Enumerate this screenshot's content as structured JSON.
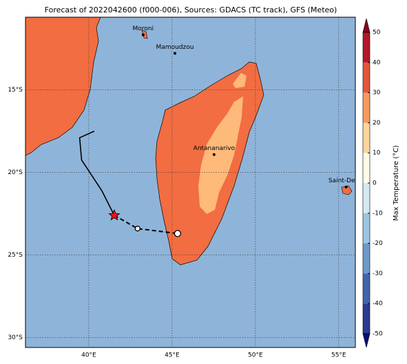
{
  "chart_data": {
    "type": "map",
    "title": "Forecast of 2022042600 (f000-006), Sources: GDACS (TC track), GFS (Meteo)",
    "xlim": [
      36.2,
      56.0
    ],
    "ylim": [
      -30.6,
      -10.6
    ],
    "xticks": [
      {
        "value": 40,
        "label": "40°E"
      },
      {
        "value": 45,
        "label": "45°E"
      },
      {
        "value": 50,
        "label": "50°E"
      },
      {
        "value": 55,
        "label": "55°E"
      }
    ],
    "yticks": [
      {
        "value": -15,
        "label": "15°S"
      },
      {
        "value": -20,
        "label": "20°S"
      },
      {
        "value": -25,
        "label": "25°S"
      },
      {
        "value": -30,
        "label": "30°S"
      }
    ],
    "grid": true,
    "cities": [
      {
        "name": "Moroni",
        "lon": 43.26,
        "lat": -11.67
      },
      {
        "name": "Mamoudzou",
        "lon": 45.17,
        "lat": -12.79
      },
      {
        "name": "Antananarivo",
        "lon": 47.52,
        "lat": -18.92
      },
      {
        "name": "Saint-Denis",
        "lon": 55.45,
        "lat": -20.88
      }
    ],
    "track": {
      "lon": [
        40.33,
        39.45,
        39.57,
        40.78,
        41.53
      ],
      "lat": [
        -17.5,
        -17.9,
        -19.25,
        -21.1,
        -22.6
      ]
    },
    "forecast": {
      "lon": [
        41.53,
        42.93,
        45.33
      ],
      "lat": [
        -22.6,
        -23.4,
        -23.7
      ]
    },
    "colorbar": {
      "label": "Max Temperature (°C)",
      "ticks": [
        -50,
        -40,
        -30,
        -20,
        -10,
        0,
        10,
        20,
        30,
        40,
        50
      ],
      "colors": [
        "#2b3a8f",
        "#3f66ad",
        "#6b9bca",
        "#9cc5e0",
        "#d4e9f2",
        "#fefbe6",
        "#fdd49b",
        "#f59a5c",
        "#e2553b",
        "#b5172b"
      ],
      "under": "#0b0b7a",
      "over": "#850021"
    }
  }
}
